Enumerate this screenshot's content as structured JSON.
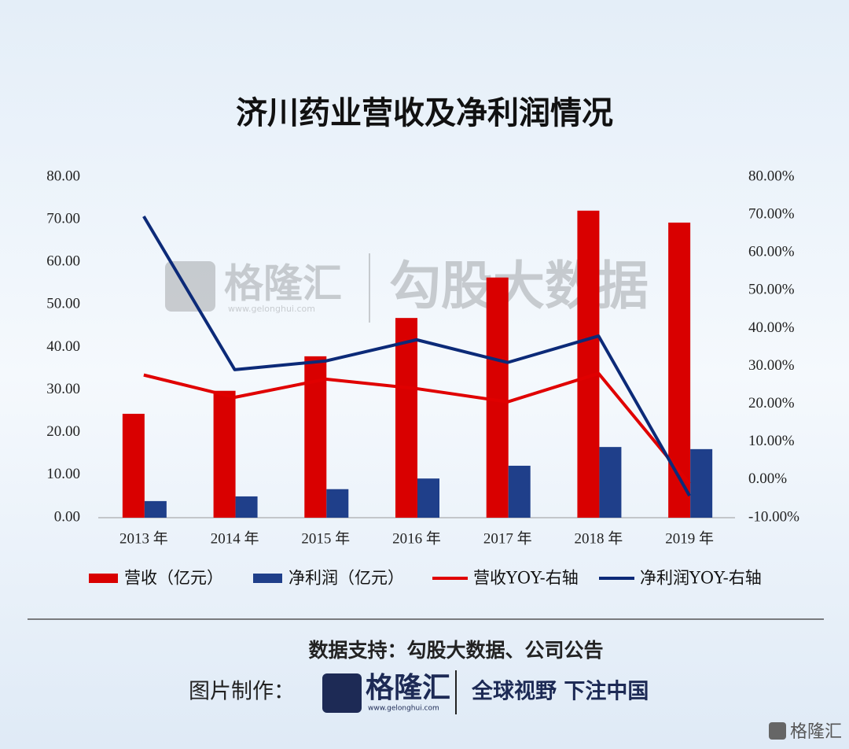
{
  "chart_data": {
    "type": "bar",
    "title": "济川药业营收及净利润情况",
    "categories": [
      "2013 年",
      "2014 年",
      "2015 年",
      "2016 年",
      "2017 年",
      "2018 年",
      "2019 年"
    ],
    "series": [
      {
        "name": "营收（亿元）",
        "type": "bar",
        "color": "#d90000",
        "values": [
          24.4,
          29.8,
          37.9,
          46.9,
          56.4,
          72.1,
          69.3
        ]
      },
      {
        "name": "净利润（亿元）",
        "type": "bar",
        "color": "#1f3f8a",
        "values": [
          3.9,
          5.0,
          6.7,
          9.2,
          12.2,
          16.6,
          16.1
        ]
      },
      {
        "name": "营收YOY-右轴",
        "type": "line",
        "axis": "y2",
        "color": "#e00000",
        "values": [
          27.7,
          21.8,
          26.6,
          24.1,
          20.6,
          28.1,
          -1.0
        ]
      },
      {
        "name": "净利润YOY-右轴",
        "type": "line",
        "axis": "y2",
        "color": "#0c2a78",
        "values": [
          69.6,
          29.1,
          31.4,
          37.0,
          31.0,
          38.0,
          -4.2
        ]
      }
    ],
    "ylim": [
      0,
      80
    ],
    "yticks": [
      {
        "value": 0,
        "label": "0.00"
      },
      {
        "value": 10,
        "label": "10.00"
      },
      {
        "value": 20,
        "label": "20.00"
      },
      {
        "value": 30,
        "label": "30.00"
      },
      {
        "value": 40,
        "label": "40.00"
      },
      {
        "value": 50,
        "label": "50.00"
      },
      {
        "value": 60,
        "label": "60.00"
      },
      {
        "value": 70,
        "label": "70.00"
      },
      {
        "value": 80,
        "label": "80.00"
      }
    ],
    "y2lim": [
      -10,
      80
    ],
    "y2ticks": [
      {
        "value": -10,
        "label": "-10.00%"
      },
      {
        "value": 0,
        "label": "0.00%"
      },
      {
        "value": 10,
        "label": "10.00%"
      },
      {
        "value": 20,
        "label": "20.00%"
      },
      {
        "value": 30,
        "label": "30.00%"
      },
      {
        "value": 40,
        "label": "40.00%"
      },
      {
        "value": 50,
        "label": "50.00%"
      },
      {
        "value": 60,
        "label": "60.00%"
      },
      {
        "value": 70,
        "label": "70.00%"
      },
      {
        "value": 80,
        "label": "80.00%"
      }
    ],
    "grid": false,
    "legend": "bottom"
  },
  "watermark": {
    "brand": "格隆汇",
    "url": "www.gelonghui.com",
    "product": "勾股大数据"
  },
  "footer": {
    "source": "数据支持：勾股大数据、公司公告",
    "maker": "图片制作：",
    "brand": "格隆汇",
    "url": "www.gelonghui.com",
    "slogan": "全球视野 下注中国",
    "corner": "格隆汇"
  }
}
